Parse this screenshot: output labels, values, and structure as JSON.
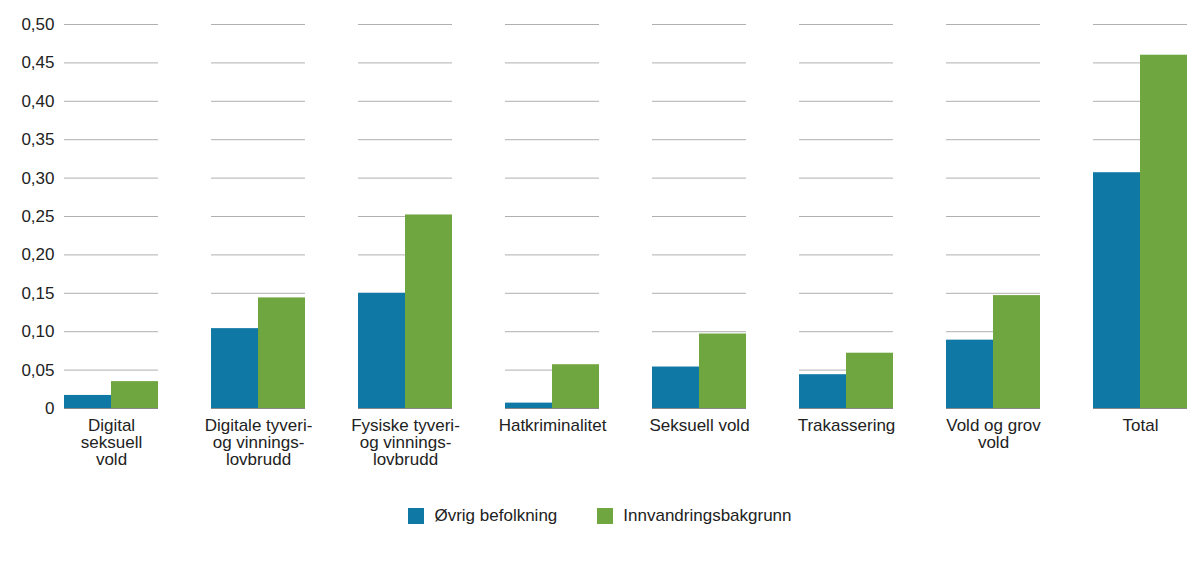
{
  "chart_data": {
    "type": "bar",
    "categories": [
      "Digital\nseksuell\nvold",
      "Digitale tyveri-\nog vinnings-\nlovbrudd",
      "Fysiske tyveri-\nog vinnings-\nlovbrudd",
      "Hatkriminalitet",
      "Seksuell vold",
      "Trakassering",
      "Vold og grov\nvold",
      "Total"
    ],
    "series": [
      {
        "name": "Øvrig befolkning",
        "color": "#0f78a4",
        "values": [
          0.017,
          0.104,
          0.15,
          0.007,
          0.054,
          0.044,
          0.089,
          0.307
        ]
      },
      {
        "name": "Innvandringsbakgrunn",
        "color": "#6fa63f",
        "values": [
          0.035,
          0.144,
          0.252,
          0.057,
          0.097,
          0.072,
          0.147,
          0.46
        ]
      }
    ],
    "ylim": [
      0,
      0.5
    ],
    "yticks": [
      0,
      {
        "value": 0.05,
        "label": "0,05"
      },
      {
        "value": 0.1,
        "label": "0,10"
      },
      {
        "value": 0.15,
        "label": "0,15"
      },
      {
        "value": 0.2,
        "label": "0,20"
      },
      {
        "value": 0.25,
        "label": "0,25"
      },
      {
        "value": 0.3,
        "label": "0,30"
      },
      {
        "value": 0.35,
        "label": "0,35"
      },
      {
        "value": 0.4,
        "label": "0,40"
      },
      {
        "value": 0.45,
        "label": "0,45"
      },
      {
        "value": 0.5,
        "label": "0,50"
      }
    ],
    "grid": true,
    "legend": "bottom"
  }
}
